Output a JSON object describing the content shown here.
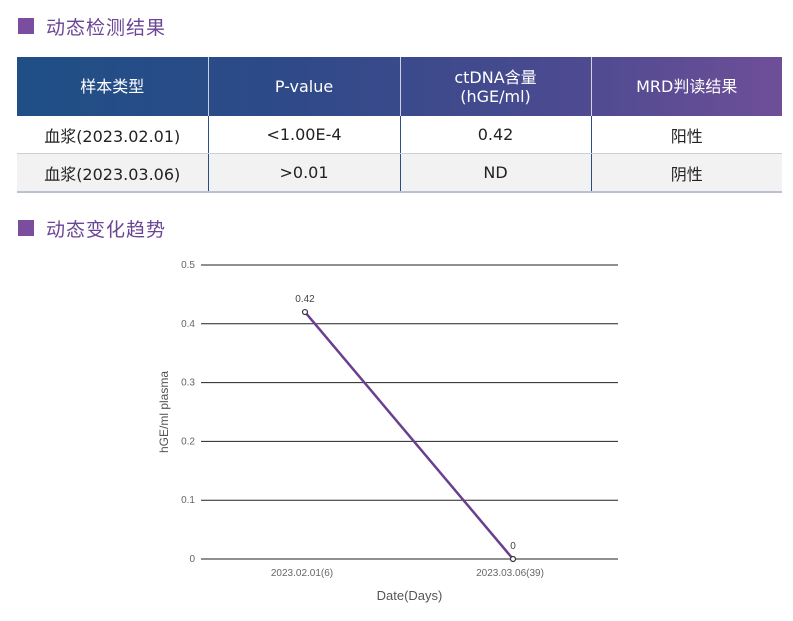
{
  "sections": {
    "results_title": "动态检测结果",
    "trend_title": "动态变化趋势"
  },
  "table": {
    "headers": [
      "样本类型",
      "P-value",
      "ctDNA含量\n(hGE/ml)",
      "MRD判读结果"
    ],
    "rows": [
      [
        "血浆(2023.02.01)",
        "<1.00E-4",
        "0.42",
        "阳性"
      ],
      [
        "血浆(2023.03.06)",
        ">0.01",
        "ND",
        "阴性"
      ]
    ]
  },
  "colors": {
    "accent": "#6b4596",
    "line": "#6b3f8f",
    "grid": "#222222"
  },
  "chart_data": {
    "type": "line",
    "x": [
      "2023.02.01(6)",
      "2023.03.06(39)"
    ],
    "series": [
      {
        "values": [
          0.42,
          0
        ],
        "labels": [
          "0.42",
          "0"
        ]
      }
    ],
    "title": "",
    "xlabel": "Date(Days)",
    "ylabel": "hGE/ml plasma",
    "ylim": [
      0,
      0.5
    ],
    "yticks": [
      0,
      0.1,
      0.2,
      0.3,
      0.4,
      0.5
    ],
    "ytick_labels": [
      "0",
      "0.1",
      "0.2",
      "0.3",
      "0.4",
      "0.5"
    ],
    "grid": true,
    "legend": "none"
  }
}
